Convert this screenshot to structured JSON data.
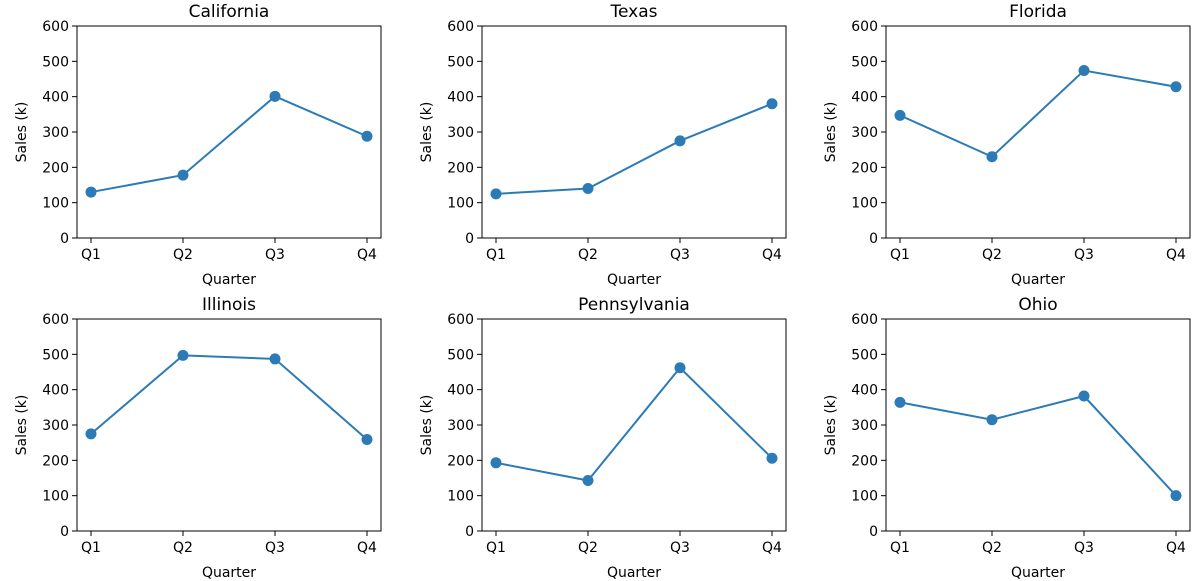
{
  "figure": {
    "x_label": "Quarter",
    "y_label": "Sales (k)",
    "line_color": "#2c7bb6"
  },
  "chart_data": [
    {
      "type": "line",
      "title": "California",
      "xlabel": "Quarter",
      "ylabel": "Sales (k)",
      "categories": [
        "Q1",
        "Q2",
        "Q3",
        "Q4"
      ],
      "values": [
        130,
        178,
        401,
        288
      ],
      "ylim": [
        0,
        600
      ],
      "yticks": [
        "0",
        "100",
        "200",
        "300",
        "400",
        "500",
        "600"
      ],
      "marker": "circle",
      "grid": false
    },
    {
      "type": "line",
      "title": "Texas",
      "xlabel": "Quarter",
      "ylabel": "Sales (k)",
      "categories": [
        "Q1",
        "Q2",
        "Q3",
        "Q4"
      ],
      "values": [
        125,
        140,
        275,
        380
      ],
      "ylim": [
        0,
        600
      ],
      "yticks": [
        "0",
        "100",
        "200",
        "300",
        "400",
        "500",
        "600"
      ],
      "marker": "circle",
      "grid": false
    },
    {
      "type": "line",
      "title": "Florida",
      "xlabel": "Quarter",
      "ylabel": "Sales (k)",
      "categories": [
        "Q1",
        "Q2",
        "Q3",
        "Q4"
      ],
      "values": [
        347,
        230,
        474,
        428
      ],
      "ylim": [
        0,
        600
      ],
      "yticks": [
        "0",
        "100",
        "200",
        "300",
        "400",
        "500",
        "600"
      ],
      "marker": "circle",
      "grid": false
    },
    {
      "type": "line",
      "title": "Illinois",
      "xlabel": "Quarter",
      "ylabel": "Sales (k)",
      "categories": [
        "Q1",
        "Q2",
        "Q3",
        "Q4"
      ],
      "values": [
        275,
        497,
        487,
        259
      ],
      "ylim": [
        0,
        600
      ],
      "yticks": [
        "0",
        "100",
        "200",
        "300",
        "400",
        "500",
        "600"
      ],
      "marker": "circle",
      "grid": false
    },
    {
      "type": "line",
      "title": "Pennsylvania",
      "xlabel": "Quarter",
      "ylabel": "Sales (k)",
      "categories": [
        "Q1",
        "Q2",
        "Q3",
        "Q4"
      ],
      "values": [
        193,
        143,
        462,
        206
      ],
      "ylim": [
        0,
        600
      ],
      "yticks": [
        "0",
        "100",
        "200",
        "300",
        "400",
        "500",
        "600"
      ],
      "marker": "circle",
      "grid": false
    },
    {
      "type": "line",
      "title": "Ohio",
      "xlabel": "Quarter",
      "ylabel": "Sales (k)",
      "categories": [
        "Q1",
        "Q2",
        "Q3",
        "Q4"
      ],
      "values": [
        364,
        315,
        382,
        100
      ],
      "ylim": [
        0,
        600
      ],
      "yticks": [
        "0",
        "100",
        "200",
        "300",
        "400",
        "500",
        "600"
      ],
      "marker": "circle",
      "grid": false
    }
  ]
}
